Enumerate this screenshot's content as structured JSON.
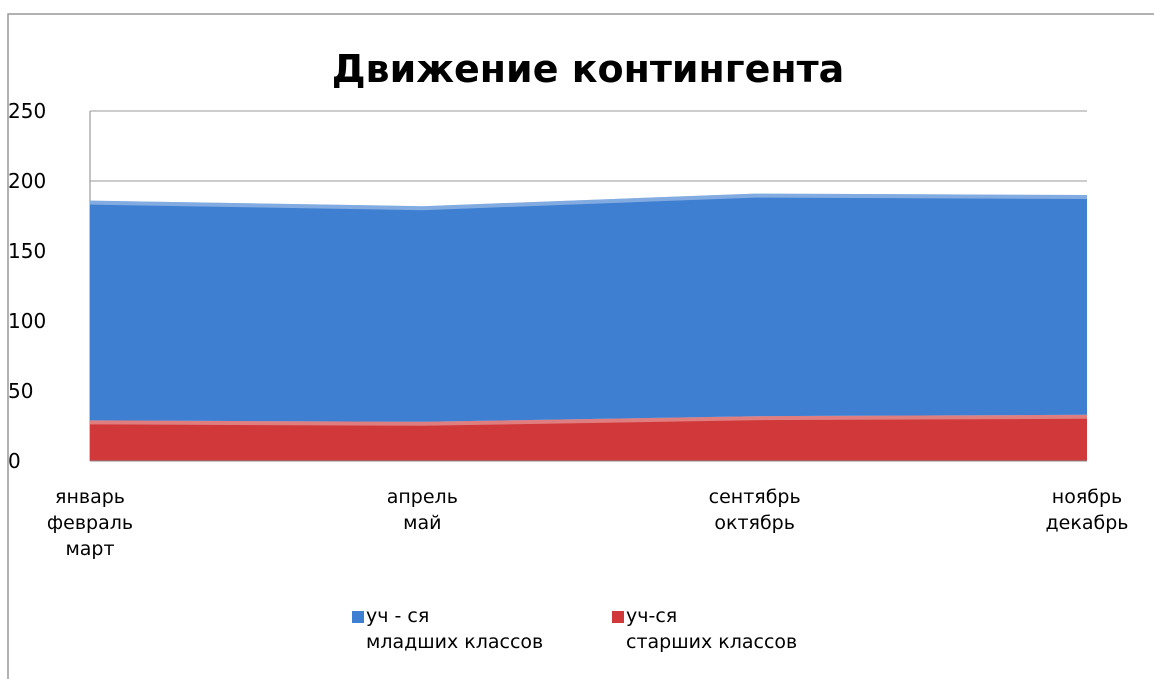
{
  "chart_data": {
    "type": "stacked_area",
    "title": "Движение контингента",
    "categories": [
      "январь\nфевраль\nмарт",
      "апрель\nмай",
      "сентябрь\nоктябрь",
      "ноябрь\nдекабрь"
    ],
    "series": [
      {
        "name": "уч-ся\nстарших классов",
        "color": "#d0383a",
        "values": [
          29,
          28,
          32,
          33
        ]
      },
      {
        "name": "уч - ся\nмладших классов",
        "color": "#3f7fd1",
        "values": [
          157,
          154,
          159,
          157
        ]
      }
    ],
    "ylim": [
      0,
      250
    ],
    "yticks": [
      0,
      50,
      100,
      150,
      200,
      250
    ],
    "grid": true
  }
}
